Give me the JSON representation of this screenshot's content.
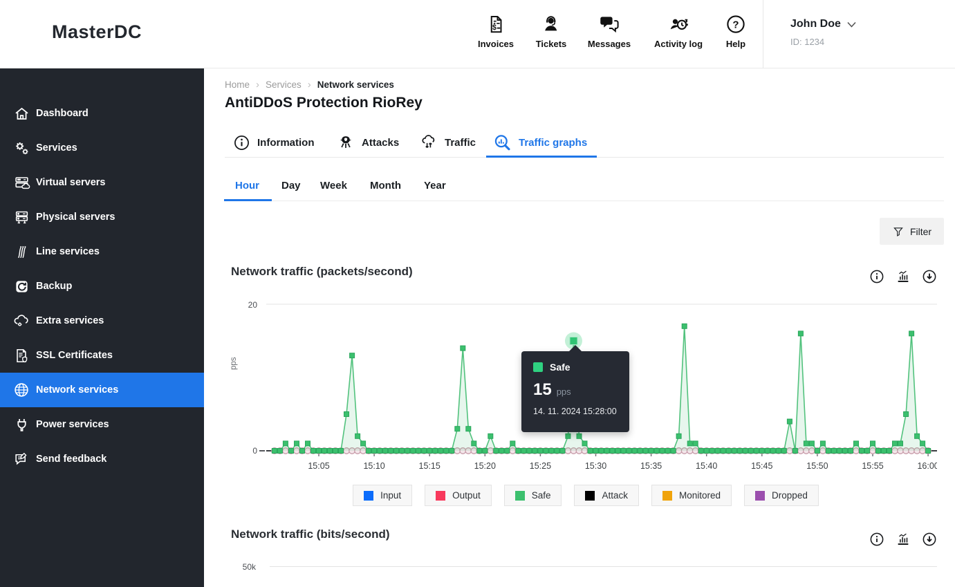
{
  "header": {
    "logo": "MasterDC",
    "nav": [
      {
        "label": "Invoices"
      },
      {
        "label": "Tickets"
      },
      {
        "label": "Messages"
      },
      {
        "label": "Activity log"
      },
      {
        "label": "Help"
      }
    ],
    "user": {
      "name": "John Doe",
      "id": "ID: 1234"
    }
  },
  "sidebar": {
    "items": [
      {
        "label": "Dashboard"
      },
      {
        "label": "Services"
      },
      {
        "label": "Virtual servers"
      },
      {
        "label": "Physical servers"
      },
      {
        "label": "Line services"
      },
      {
        "label": "Backup"
      },
      {
        "label": "Extra services"
      },
      {
        "label": "SSL Certificates"
      },
      {
        "label": "Network services",
        "active": true
      },
      {
        "label": "Power services"
      },
      {
        "label": "Send feedback"
      }
    ]
  },
  "breadcrumb": {
    "items": [
      "Home",
      "Services",
      "Network services"
    ]
  },
  "page_title": "AntiDDoS Protection RioRey",
  "tabs": {
    "items": [
      {
        "label": "Information"
      },
      {
        "label": "Attacks"
      },
      {
        "label": "Traffic"
      },
      {
        "label": "Traffic graphs",
        "active": true
      }
    ]
  },
  "subtabs": {
    "items": [
      {
        "label": "Hour",
        "active": true
      },
      {
        "label": "Day"
      },
      {
        "label": "Week"
      },
      {
        "label": "Month"
      },
      {
        "label": "Year"
      }
    ]
  },
  "controls": {
    "filter_label": "Filter"
  },
  "tooltip": {
    "series_label": "Safe",
    "swatch_color": "#2fd180",
    "value": "15",
    "unit": "pps",
    "timestamp": "14. 11. 2024 15:28:00"
  },
  "legend": {
    "items": [
      {
        "label": "Input",
        "color": "#0b6cfb"
      },
      {
        "label": "Output",
        "color": "#f8395c"
      },
      {
        "label": "Safe",
        "color": "#3cc06e"
      },
      {
        "label": "Attack",
        "color": "#000000"
      },
      {
        "label": "Monitored",
        "color": "#f0a30a"
      },
      {
        "label": "Dropped",
        "color": "#9b4fae"
      }
    ]
  },
  "chart_data": [
    {
      "type": "line",
      "title": "Network traffic (packets/second)",
      "ylabel": "pps",
      "ylim": [
        0,
        20
      ],
      "yticks": [
        "0",
        "20"
      ],
      "grid": "horizontal-top-only",
      "legend_position": "bottom",
      "x_unit": "time of day, hour view",
      "x_range_minutes_after_1500": [
        1,
        60
      ],
      "sample_interval_minutes": 0.5,
      "xticks_minutes": [
        5,
        10,
        15,
        20,
        25,
        30,
        35,
        40,
        45,
        50,
        55,
        60
      ],
      "xtick_labels": [
        "15:05",
        "15:10",
        "15:15",
        "15:20",
        "15:25",
        "15:30",
        "15:35",
        "15:40",
        "15:45",
        "15:50",
        "15:55",
        "16:00"
      ],
      "series": [
        {
          "name": "Input",
          "color": "#0b6cfb",
          "flat_value": 0
        },
        {
          "name": "Output",
          "color": "#f8395c",
          "marker": "circle",
          "marker_fill": "#f3e6ea",
          "marker_stroke": "#c79aa8",
          "flat_value": 0
        },
        {
          "name": "Safe",
          "color": "#3cc06e",
          "line_color": "#52c27d",
          "marker": "square",
          "marker_stroke": "#2aa65c",
          "area_fill": "rgba(82,194,125,0.14)",
          "baseline_value": 0,
          "peaks": [
            [
              2,
              1
            ],
            [
              3,
              1
            ],
            [
              4,
              1
            ],
            [
              7.5,
              5
            ],
            [
              8,
              13
            ],
            [
              8.5,
              2
            ],
            [
              9,
              1
            ],
            [
              17.5,
              3
            ],
            [
              18,
              14
            ],
            [
              18.5,
              3
            ],
            [
              19,
              1
            ],
            [
              20.5,
              2
            ],
            [
              22.5,
              1
            ],
            [
              27.5,
              2
            ],
            [
              28,
              15
            ],
            [
              28.5,
              2
            ],
            [
              29,
              1
            ],
            [
              37.5,
              2
            ],
            [
              38,
              17
            ],
            [
              38.5,
              1
            ],
            [
              39,
              1
            ],
            [
              47.5,
              4
            ],
            [
              48.5,
              16
            ],
            [
              49,
              1
            ],
            [
              49.5,
              1
            ],
            [
              50.5,
              1
            ],
            [
              53.5,
              1
            ],
            [
              55,
              1
            ],
            [
              57,
              1
            ],
            [
              57.5,
              1
            ],
            [
              58,
              5
            ],
            [
              58.5,
              16
            ],
            [
              59,
              2
            ],
            [
              59.5,
              1
            ]
          ]
        },
        {
          "name": "Attack",
          "color": "#000000",
          "flat_value": 0
        },
        {
          "name": "Monitored",
          "color": "#f0a30a",
          "flat_value": 0
        },
        {
          "name": "Dropped",
          "color": "#9b4fae",
          "flat_value": 0
        }
      ],
      "highlight": {
        "series": "Safe",
        "x_minute": 28,
        "value": 15,
        "time": "14. 11. 2024 15:28:00"
      }
    },
    {
      "type": "line",
      "title": "Network traffic (bits/second)",
      "yticks": [
        "50k"
      ]
    }
  ]
}
